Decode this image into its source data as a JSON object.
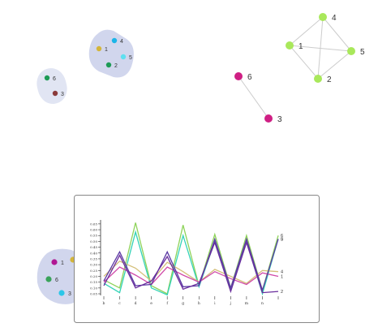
{
  "colors": {
    "hull_fill": "#c9cfea",
    "edge": "#cccccc",
    "green_node": "#a9e85b",
    "magenta_node": "#cf1f84",
    "panel_border": "#888888",
    "line_green": "#8ed35a",
    "line_teal": "#35d3b7",
    "line_purple": "#5b3aa4",
    "line_magenta": "#d04aa8",
    "line_khaki": "#d4c07a"
  },
  "cluster_a": {
    "nodes": [
      {
        "label": "4",
        "color": "#1bb5e8"
      },
      {
        "label": "1",
        "color": "#d3b53a"
      },
      {
        "label": "5",
        "color": "#5fe0f0"
      },
      {
        "label": "2",
        "color": "#1e9b56"
      }
    ]
  },
  "cluster_b": {
    "nodes": [
      {
        "label": "6",
        "color": "#1e9b56"
      },
      {
        "label": "3",
        "color": "#8a3a3a"
      }
    ]
  },
  "graph_right": {
    "nodes": [
      {
        "label": "4"
      },
      {
        "label": "1"
      },
      {
        "label": "5"
      },
      {
        "label": "2"
      }
    ]
  },
  "pair_magenta": {
    "nodes": [
      {
        "label": "6"
      },
      {
        "label": "3"
      }
    ]
  },
  "cluster_bottom": {
    "nodes": [
      {
        "label": "1",
        "color": "#b01893"
      },
      {
        "label": "6",
        "color": "#3aa35a"
      },
      {
        "label": "3",
        "color": "#2cc6e8"
      }
    ]
  },
  "chart_data": {
    "type": "line",
    "categories": [
      "b",
      "c",
      "d",
      "e",
      "f",
      "g",
      "h",
      "i",
      "j",
      "m",
      "n",
      ""
    ],
    "y_ticks": [
      "0.05",
      "0.10",
      "0.15",
      "0.20",
      "0.25",
      "0.30",
      "0.35",
      "0.40",
      "0.45",
      "0.50",
      "0.55",
      "0.60",
      "0.65"
    ],
    "ylim": [
      0.05,
      0.67
    ],
    "series": [
      {
        "name": "",
        "end_label": "6",
        "color": "#8ed35a",
        "values": [
          0.17,
          0.1,
          0.66,
          0.12,
          0.05,
          0.64,
          0.12,
          0.56,
          0.1,
          0.55,
          0.08,
          0.55
        ]
      },
      {
        "name": "",
        "end_label": "5",
        "color": "#35d3b7",
        "values": [
          0.14,
          0.06,
          0.58,
          0.1,
          0.04,
          0.55,
          0.11,
          0.5,
          0.08,
          0.5,
          0.05,
          0.52
        ]
      },
      {
        "name": "",
        "end_label": "4",
        "color": "#d4c07a",
        "values": [
          0.2,
          0.33,
          0.27,
          0.16,
          0.32,
          0.24,
          0.15,
          0.26,
          0.2,
          0.14,
          0.25,
          0.24
        ]
      },
      {
        "name": "",
        "end_label": "1",
        "color": "#d04aa8",
        "values": [
          0.15,
          0.28,
          0.21,
          0.13,
          0.28,
          0.21,
          0.15,
          0.24,
          0.18,
          0.13,
          0.23,
          0.2
        ]
      },
      {
        "name": "",
        "end_label": "3",
        "color": "#5b3aa4",
        "values": [
          0.16,
          0.41,
          0.12,
          0.13,
          0.41,
          0.11,
          0.12,
          0.52,
          0.1,
          0.52,
          0.08,
          0.52
        ]
      },
      {
        "name": "",
        "end_label": "2",
        "color": "#6a2d9d",
        "values": [
          0.12,
          0.38,
          0.1,
          0.16,
          0.37,
          0.09,
          0.14,
          0.49,
          0.07,
          0.49,
          0.06,
          0.07
        ]
      }
    ]
  }
}
